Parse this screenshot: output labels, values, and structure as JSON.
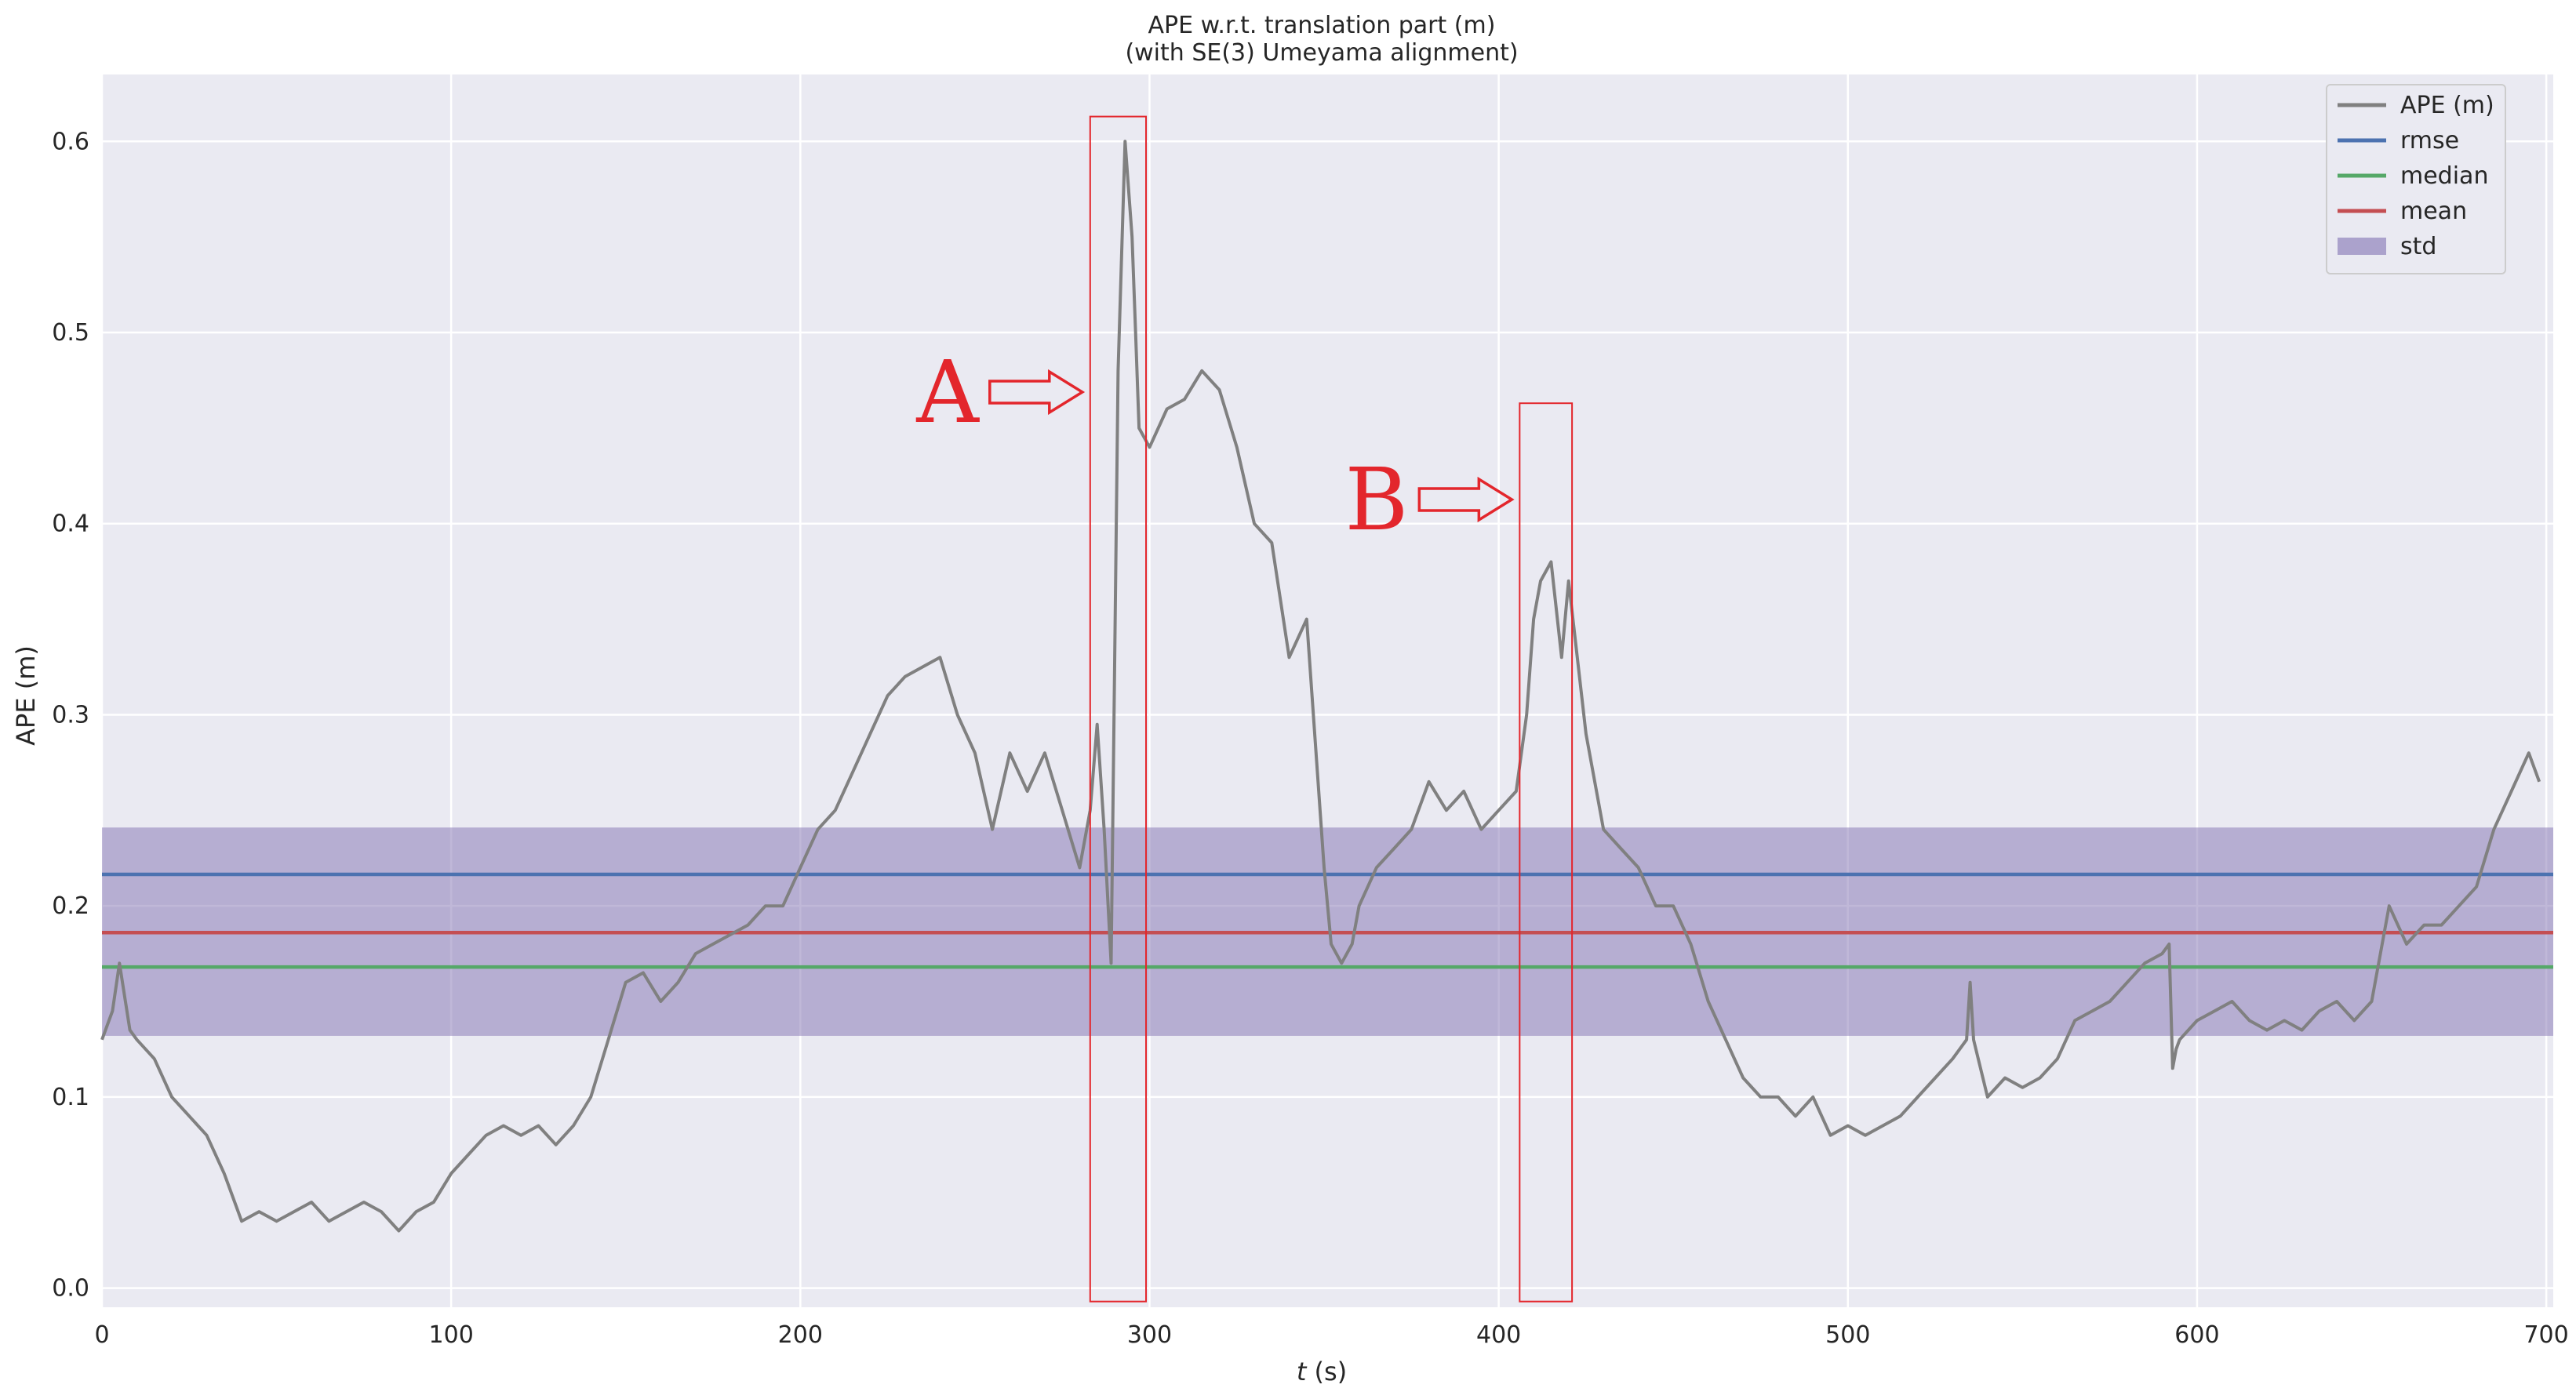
{
  "chart_data": {
    "type": "line",
    "title": "APE w.r.t. translation part (m)",
    "subtitle": "(with SE(3) Umeyama alignment)",
    "xlabel_italic": "t",
    "xlabel_unit": " (s)",
    "ylabel": "APE (m)",
    "xlim": [
      0,
      702
    ],
    "ylim": [
      -0.01,
      0.635
    ],
    "xticks": [
      0,
      100,
      200,
      300,
      400,
      500,
      600,
      700
    ],
    "xtick_labels": [
      "0",
      "100",
      "200",
      "300",
      "400",
      "500",
      "600",
      "700"
    ],
    "yticks": [
      0.0,
      0.1,
      0.2,
      0.3,
      0.4,
      0.5,
      0.6
    ],
    "ytick_labels": [
      "0.0",
      "0.1",
      "0.2",
      "0.3",
      "0.4",
      "0.5",
      "0.6"
    ],
    "grid": true,
    "legend_position": "top-right",
    "series": [
      {
        "name": "APE (m)",
        "color": "#808080",
        "x": [
          0,
          3,
          5,
          8,
          10,
          15,
          20,
          25,
          30,
          35,
          40,
          45,
          50,
          55,
          60,
          65,
          70,
          75,
          80,
          85,
          90,
          95,
          100,
          105,
          110,
          115,
          120,
          125,
          130,
          135,
          140,
          145,
          150,
          155,
          160,
          165,
          170,
          175,
          180,
          185,
          190,
          195,
          200,
          205,
          210,
          215,
          220,
          225,
          230,
          235,
          240,
          245,
          250,
          255,
          260,
          265,
          270,
          275,
          280,
          283,
          285,
          287,
          289,
          291,
          293,
          295,
          296,
          297,
          300,
          305,
          310,
          315,
          320,
          325,
          330,
          335,
          340,
          345,
          350,
          352,
          355,
          358,
          360,
          365,
          370,
          375,
          380,
          385,
          390,
          395,
          400,
          405,
          408,
          410,
          412,
          415,
          418,
          420,
          425,
          430,
          435,
          440,
          445,
          450,
          455,
          460,
          465,
          470,
          475,
          480,
          485,
          490,
          495,
          500,
          505,
          510,
          515,
          520,
          525,
          530,
          534,
          535,
          536,
          540,
          545,
          550,
          555,
          560,
          565,
          570,
          575,
          580,
          585,
          590,
          592,
          593,
          594,
          595,
          600,
          605,
          610,
          615,
          620,
          625,
          630,
          635,
          640,
          645,
          650,
          655,
          660,
          665,
          670,
          675,
          680,
          685,
          690,
          695,
          698
        ],
        "values": [
          0.13,
          0.145,
          0.17,
          0.135,
          0.13,
          0.12,
          0.1,
          0.09,
          0.08,
          0.06,
          0.035,
          0.04,
          0.035,
          0.04,
          0.045,
          0.035,
          0.04,
          0.045,
          0.04,
          0.03,
          0.04,
          0.045,
          0.06,
          0.07,
          0.08,
          0.085,
          0.08,
          0.085,
          0.075,
          0.085,
          0.1,
          0.13,
          0.16,
          0.165,
          0.15,
          0.16,
          0.175,
          0.18,
          0.185,
          0.19,
          0.2,
          0.2,
          0.22,
          0.24,
          0.25,
          0.27,
          0.29,
          0.31,
          0.32,
          0.325,
          0.33,
          0.3,
          0.28,
          0.24,
          0.28,
          0.26,
          0.28,
          0.25,
          0.22,
          0.25,
          0.295,
          0.24,
          0.17,
          0.48,
          0.6,
          0.55,
          0.5,
          0.45,
          0.44,
          0.46,
          0.465,
          0.48,
          0.47,
          0.44,
          0.4,
          0.39,
          0.33,
          0.35,
          0.22,
          0.18,
          0.17,
          0.18,
          0.2,
          0.22,
          0.23,
          0.24,
          0.265,
          0.25,
          0.26,
          0.24,
          0.25,
          0.26,
          0.3,
          0.35,
          0.37,
          0.38,
          0.33,
          0.37,
          0.29,
          0.24,
          0.23,
          0.22,
          0.2,
          0.2,
          0.18,
          0.15,
          0.13,
          0.11,
          0.1,
          0.1,
          0.09,
          0.1,
          0.08,
          0.085,
          0.08,
          0.085,
          0.09,
          0.1,
          0.11,
          0.12,
          0.13,
          0.16,
          0.13,
          0.1,
          0.11,
          0.105,
          0.11,
          0.12,
          0.14,
          0.145,
          0.15,
          0.16,
          0.17,
          0.175,
          0.18,
          0.115,
          0.125,
          0.13,
          0.14,
          0.145,
          0.15,
          0.14,
          0.135,
          0.14,
          0.135,
          0.145,
          0.15,
          0.14,
          0.15,
          0.2,
          0.18,
          0.19,
          0.19,
          0.2,
          0.21,
          0.24,
          0.26,
          0.28,
          0.265
        ]
      },
      {
        "name": "rmse",
        "color": "#4c72b0",
        "value": 0.2165
      },
      {
        "name": "median",
        "color": "#55a868",
        "value": 0.168
      },
      {
        "name": "mean",
        "color": "#c44e52",
        "value": 0.186
      },
      {
        "name": "std",
        "color": "#8172b2",
        "band": [
          0.132,
          0.241
        ]
      }
    ],
    "annotations": [
      {
        "label": "A",
        "box_x": [
          283,
          299
        ],
        "box_y": [
          -0.007,
          0.613
        ],
        "color": "#e3262c"
      },
      {
        "label": "B",
        "box_x": [
          406,
          421
        ],
        "box_y": [
          -0.007,
          0.463
        ],
        "color": "#e3262c"
      }
    ]
  }
}
